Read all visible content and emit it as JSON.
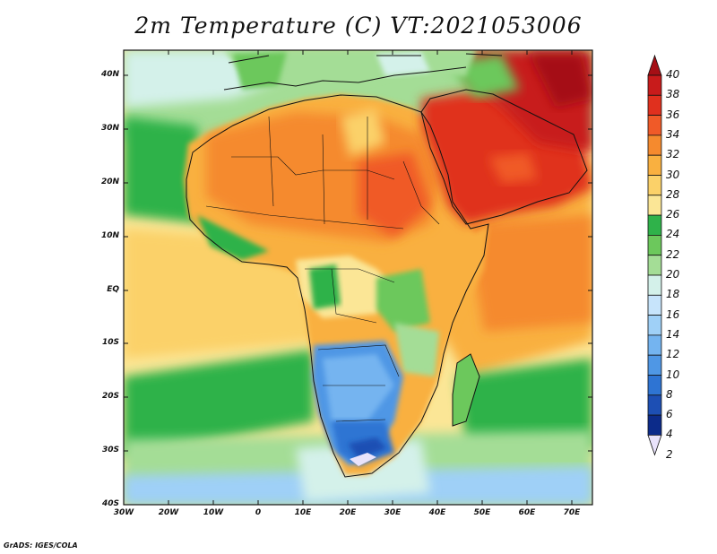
{
  "title": "2m Temperature (C) VT:2021053006",
  "footer": "GrADS: IGES/COLA",
  "map": {
    "variable": "2m Temperature",
    "units": "C",
    "valid_time": "2021053006",
    "lon_range": [
      -30,
      75
    ],
    "lat_range": [
      -40,
      45
    ],
    "lat_ticks": [
      "40N",
      "30N",
      "20N",
      "10N",
      "EQ",
      "10S",
      "20S",
      "30S",
      "40S"
    ],
    "lon_ticks": [
      "30W",
      "20W",
      "10W",
      "0",
      "10E",
      "20E",
      "30E",
      "40E",
      "50E",
      "60E",
      "70E"
    ]
  },
  "colorbar": {
    "levels": [
      "40",
      "38",
      "36",
      "34",
      "32",
      "30",
      "28",
      "26",
      "24",
      "22",
      "20",
      "18",
      "16",
      "14",
      "12",
      "10",
      "8",
      "6",
      "4",
      "2"
    ],
    "colors": [
      "#a50f15",
      "#c81b1b",
      "#e0301e",
      "#f05a28",
      "#f58a2e",
      "#f9b040",
      "#fbd169",
      "#fbe696",
      "#2fb24a",
      "#6cc85c",
      "#a4dd96",
      "#d4f1ea",
      "#c7e4fb",
      "#9fd0f7",
      "#74b4f0",
      "#4f97e5",
      "#2e74d3",
      "#1d4fb4",
      "#0c2b8a",
      "#e9e3fb"
    ]
  }
}
